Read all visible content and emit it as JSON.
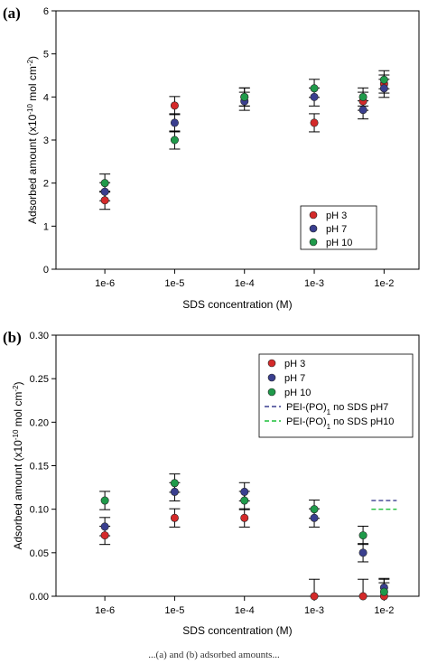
{
  "chart_data": [
    {
      "type": "scatter",
      "panel_label": "(a)",
      "xlabel": "SDS concentration (M)",
      "ylabel_main": "Adsorbed amount (x10",
      "ylabel_exp": "-10",
      "ylabel_unit": " mol cm",
      "ylabel_unit_exp": "-2",
      "ylabel_tail": ")",
      "x_categories": [
        "1e-6",
        "1e-5",
        "1e-4",
        "1e-3",
        "1e-2"
      ],
      "ylim": [
        0,
        6
      ],
      "yticks": [
        "0",
        "1",
        "2",
        "3",
        "4",
        "5",
        "6"
      ],
      "legend_position": "lower-right",
      "series": [
        {
          "name": "pH 3",
          "color": "#d42a2a",
          "points": [
            {
              "x": "1e-6",
              "y": 1.6
            },
            {
              "x": "1e-5",
              "y": 3.8
            },
            {
              "x": "1e-4",
              "y": 4.0
            },
            {
              "x": "1e-3",
              "y": 3.4
            },
            {
              "x": "5e-3",
              "y": 3.9
            },
            {
              "x": "1e-2",
              "y": 4.3
            }
          ]
        },
        {
          "name": "pH 7",
          "color": "#3a3f8f",
          "points": [
            {
              "x": "1e-6",
              "y": 1.8
            },
            {
              "x": "1e-5",
              "y": 3.4
            },
            {
              "x": "1e-4",
              "y": 3.9
            },
            {
              "x": "1e-3",
              "y": 4.0
            },
            {
              "x": "5e-3",
              "y": 3.7
            },
            {
              "x": "1e-2",
              "y": 4.2
            }
          ]
        },
        {
          "name": "pH 10",
          "color": "#1f9a4a",
          "points": [
            {
              "x": "1e-6",
              "y": 2.0
            },
            {
              "x": "1e-5",
              "y": 3.0
            },
            {
              "x": "1e-4",
              "y": 4.0
            },
            {
              "x": "1e-3",
              "y": 4.2
            },
            {
              "x": "5e-3",
              "y": 4.0
            },
            {
              "x": "1e-2",
              "y": 4.4
            }
          ]
        }
      ]
    },
    {
      "type": "scatter",
      "panel_label": "(b)",
      "xlabel": "SDS concentration (M)",
      "ylabel_main": "Adsorbed amount (x10",
      "ylabel_exp": "-10",
      "ylabel_unit": " mol cm",
      "ylabel_unit_exp": "-2",
      "ylabel_tail": ")",
      "x_categories": [
        "1e-6",
        "1e-5",
        "1e-4",
        "1e-3",
        "1e-2"
      ],
      "ylim": [
        0,
        0.3
      ],
      "yticks": [
        "0.00",
        "0.05",
        "0.10",
        "0.15",
        "0.20",
        "0.25",
        "0.30"
      ],
      "legend_position": "top-right",
      "series": [
        {
          "name": "pH 3",
          "color": "#d42a2a",
          "points": [
            {
              "x": "1e-6",
              "y": 0.07
            },
            {
              "x": "1e-5",
              "y": 0.09
            },
            {
              "x": "1e-4",
              "y": 0.09
            },
            {
              "x": "1e-3",
              "y": 0.0
            },
            {
              "x": "5e-3",
              "y": 0.0
            },
            {
              "x": "1e-2",
              "y": 0.0
            }
          ]
        },
        {
          "name": "pH 7",
          "color": "#3a3f8f",
          "points": [
            {
              "x": "1e-6",
              "y": 0.08
            },
            {
              "x": "1e-5",
              "y": 0.12
            },
            {
              "x": "1e-4",
              "y": 0.12
            },
            {
              "x": "1e-3",
              "y": 0.09
            },
            {
              "x": "5e-3",
              "y": 0.05
            },
            {
              "x": "1e-2",
              "y": 0.01
            }
          ]
        },
        {
          "name": "pH  10",
          "color": "#1f9a4a",
          "points": [
            {
              "x": "1e-6",
              "y": 0.11
            },
            {
              "x": "1e-5",
              "y": 0.13
            },
            {
              "x": "1e-4",
              "y": 0.11
            },
            {
              "x": "1e-3",
              "y": 0.1
            },
            {
              "x": "5e-3",
              "y": 0.07
            },
            {
              "x": "1e-2",
              "y": 0.005
            }
          ]
        }
      ],
      "reference_lines": [
        {
          "name_main": "PEI-(PO)",
          "name_sub": "1",
          "name_tail": " no SDS pH7",
          "color": "#3a3f8f",
          "y": 0.11,
          "x": "1e-2"
        },
        {
          "name_main": "PEI-(PO)",
          "name_sub": "1",
          "name_tail": " no SDS pH10",
          "color": "#1fbf3a",
          "y": 0.1,
          "x": "1e-2"
        }
      ]
    }
  ],
  "caption": "...(a) and (b) adsorbed amounts..."
}
